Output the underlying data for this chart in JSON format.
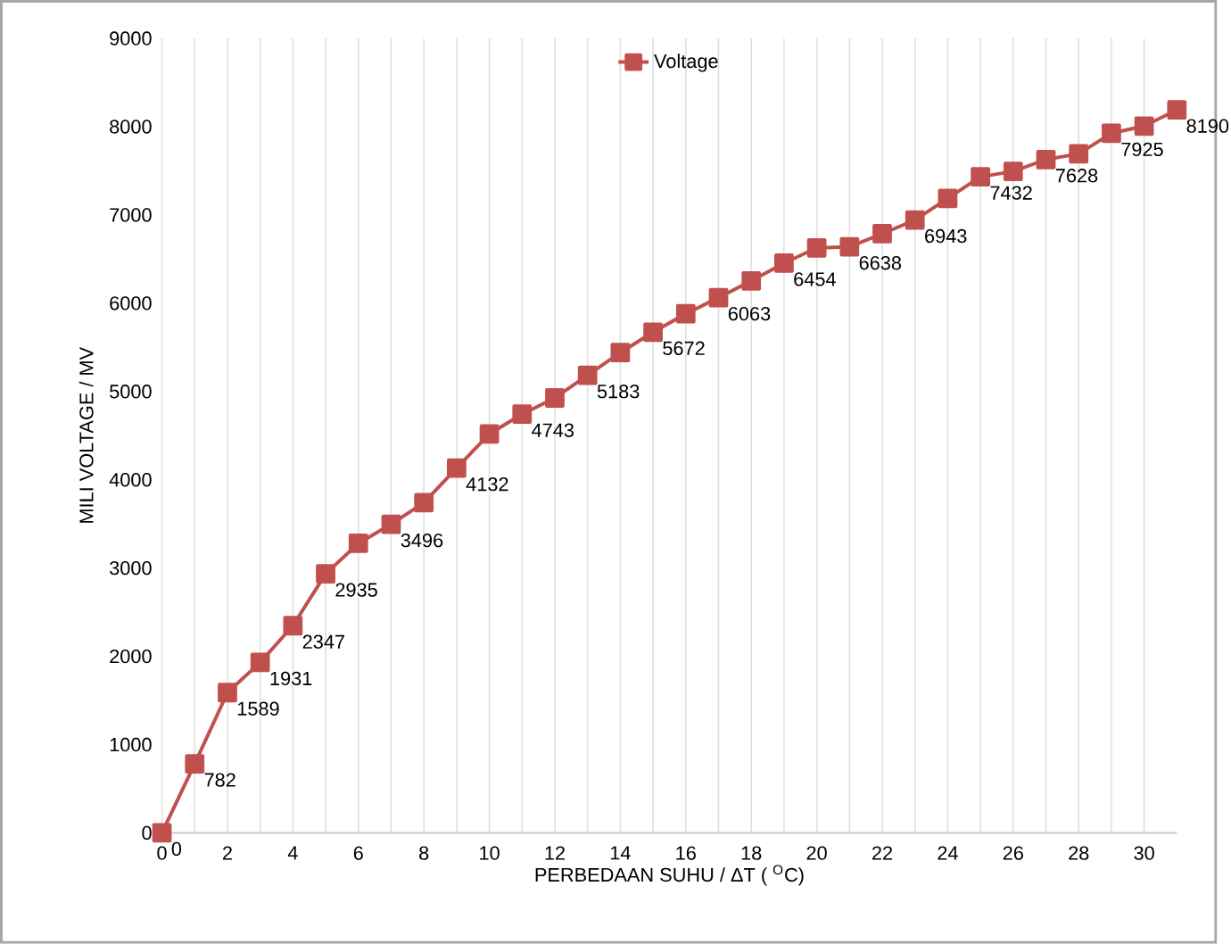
{
  "chart_data": {
    "type": "line",
    "xlabel": "PERBEDAAN SUHU  / ΔT  ( $^{O}$C)",
    "ylabel": "MILI VOLTAGE /  MV",
    "x": [
      0,
      1,
      2,
      3,
      4,
      5,
      6,
      7,
      8,
      9,
      10,
      11,
      12,
      13,
      14,
      15,
      16,
      17,
      18,
      19,
      20,
      21,
      22,
      23,
      24,
      25,
      26,
      27,
      28,
      29,
      30,
      31
    ],
    "series": [
      {
        "name": "Voltage",
        "color": "#c0504d",
        "values": [
          0,
          782,
          1589,
          1931,
          2347,
          2935,
          3280,
          3496,
          3740,
          4132,
          4520,
          4743,
          4927,
          5183,
          5440,
          5672,
          5880,
          6063,
          6253,
          6454,
          6627,
          6638,
          6787,
          6943,
          7187,
          7432,
          7493,
          7628,
          7693,
          7925,
          8007,
          8190
        ],
        "value_labels": [
          "0",
          "782",
          "1589",
          "1931",
          "2347",
          "2935",
          null,
          "3496",
          null,
          "4132",
          null,
          "4743",
          null,
          "5183",
          null,
          "5672",
          null,
          "6063",
          null,
          "6454",
          null,
          "6638",
          null,
          "6943",
          null,
          "7432",
          null,
          "7628",
          null,
          "7925",
          null,
          "8190"
        ]
      }
    ],
    "xlim": [
      0,
      31
    ],
    "xticks": [
      0,
      {
        "value": 1,
        "label": null
      },
      2,
      {
        "value": 3,
        "label": null
      },
      4,
      {
        "value": 5,
        "label": null
      },
      6,
      {
        "value": 7,
        "label": null
      },
      8,
      {
        "value": 9,
        "label": null
      },
      10,
      {
        "value": 11,
        "label": null
      },
      12,
      {
        "value": 13,
        "label": null
      },
      14,
      {
        "value": 15,
        "label": null
      },
      16,
      {
        "value": 17,
        "label": null
      },
      18,
      {
        "value": 19,
        "label": null
      },
      20,
      {
        "value": 21,
        "label": null
      },
      22,
      {
        "value": 23,
        "label": null
      },
      24,
      {
        "value": 25,
        "label": null
      },
      26,
      {
        "value": 27,
        "label": null
      },
      28,
      {
        "value": 29,
        "label": null
      },
      30
    ],
    "ylim": [
      0,
      9000
    ],
    "yticks": [
      0,
      1000,
      2000,
      3000,
      4000,
      5000,
      6000,
      7000,
      8000,
      9000
    ],
    "grid": "x",
    "legend": "top",
    "marker": "square",
    "line_style": "solid"
  }
}
